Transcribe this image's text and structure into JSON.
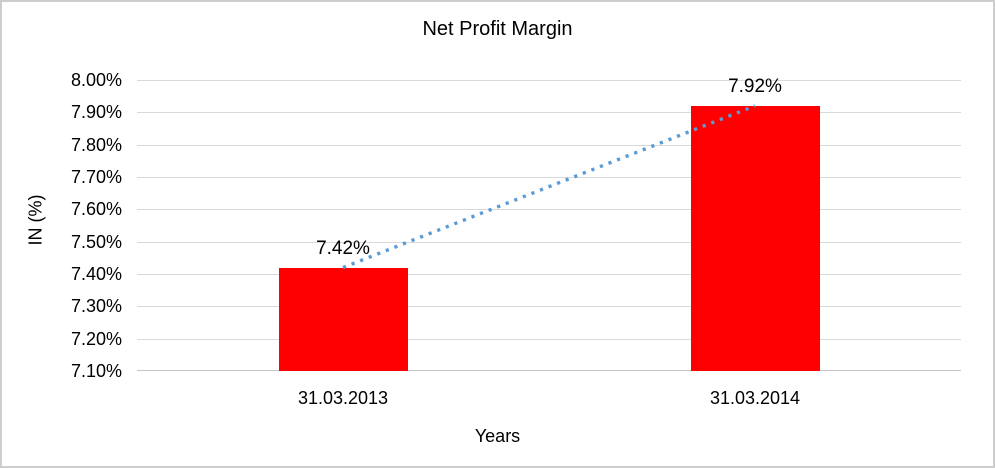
{
  "window": {
    "background": "#ffffff",
    "border_color": "#cdcdcd"
  },
  "chart_data": {
    "type": "bar",
    "title": "Net Profit Margin",
    "xlabel": "Years",
    "ylabel": "IN (%)",
    "categories": [
      "31.03.2013",
      "31.03.2014"
    ],
    "series": [
      {
        "name": "Net Profit Margin",
        "type": "bar",
        "values": [
          7.42,
          7.92
        ],
        "data_labels": [
          "7.42%",
          "7.92%"
        ],
        "color": "#FF0000"
      },
      {
        "name": "trendline",
        "type": "line",
        "line_style": "dotted",
        "values": [
          7.42,
          7.92
        ],
        "color": "#5B9BD5"
      }
    ],
    "ylim": [
      7.1,
      8.0
    ],
    "ytick_step": 0.1,
    "ytick_labels": [
      "8.00%",
      "7.90%",
      "7.80%",
      "7.70%",
      "7.60%",
      "7.50%",
      "7.40%",
      "7.30%",
      "7.20%",
      "7.10%"
    ],
    "grid": true,
    "gridline_color": "#d9d9d9",
    "axis_line_color": "#c6c6c6",
    "legend": "none"
  }
}
